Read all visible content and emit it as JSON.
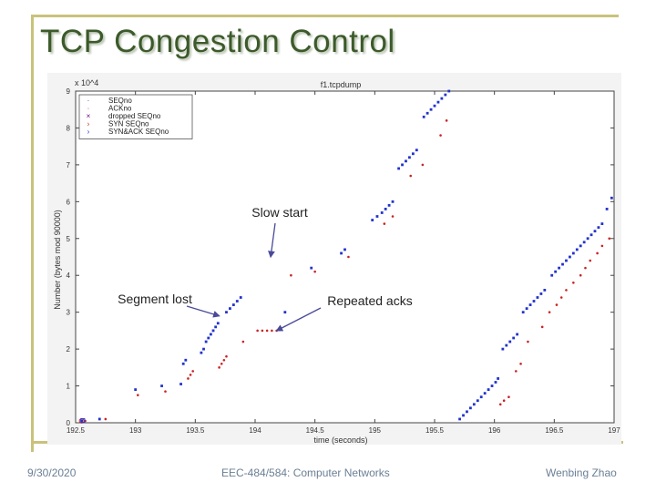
{
  "slide": {
    "title": "TCP Congestion Control",
    "footer_date": "9/30/2020",
    "footer_course": "EEC-484/584: Computer Networks",
    "footer_author": "Wenbing Zhao"
  },
  "chart_data": {
    "type": "scatter",
    "title": "f1.tcpdump",
    "xlabel": "time (seconds)",
    "ylabel": "Number (bytes mod 90000)",
    "y_multiplier": "x 10^4",
    "xlim": [
      192.5,
      197
    ],
    "ylim": [
      0,
      9
    ],
    "xticks": [
      "192.5",
      "193",
      "193.5",
      "194",
      "194.5",
      "195",
      "195.5",
      "196",
      "196.5",
      "197"
    ],
    "yticks": [
      "0",
      "1",
      "2",
      "3",
      "4",
      "5",
      "6",
      "7",
      "8",
      "9"
    ],
    "legend_position": "top-left",
    "legend": [
      "SEQno",
      "ACKno",
      "dropped SEQno",
      "SYN SEQno",
      "SYN&ACK SEQno"
    ],
    "series": [
      {
        "name": "SEQno",
        "color": "#2233cc",
        "x": [
          192.55,
          192.7,
          193.0,
          193.22,
          193.38,
          193.4,
          193.42,
          193.55,
          193.57,
          193.59,
          193.61,
          193.63,
          193.65,
          193.67,
          193.69,
          193.76,
          193.79,
          193.82,
          193.85,
          193.88,
          194.25,
          194.47,
          194.72,
          194.75,
          194.98,
          195.02,
          195.06,
          195.09,
          195.12,
          195.15,
          195.2,
          195.23,
          195.26,
          195.29,
          195.32,
          195.35,
          195.41,
          195.44,
          195.47,
          195.5,
          195.53,
          195.56,
          195.59,
          195.62,
          195.71,
          195.74,
          195.77,
          195.8,
          195.83,
          195.86,
          195.89,
          195.92,
          195.95,
          195.98,
          196.01,
          196.03,
          196.07,
          196.1,
          196.13,
          196.16,
          196.19,
          196.24,
          196.27,
          196.3,
          196.33,
          196.36,
          196.39,
          196.42,
          196.48,
          196.51,
          196.54,
          196.57,
          196.6,
          196.63,
          196.66,
          196.69,
          196.72,
          196.75,
          196.78,
          196.81,
          196.84,
          196.87,
          196.9,
          196.94,
          196.98
        ],
        "y": [
          0.05,
          0.1,
          0.9,
          1.0,
          1.05,
          1.6,
          1.7,
          1.9,
          2.0,
          2.2,
          2.3,
          2.4,
          2.5,
          2.6,
          2.7,
          3.0,
          3.1,
          3.2,
          3.3,
          3.4,
          3.0,
          4.2,
          4.6,
          4.7,
          5.5,
          5.6,
          5.7,
          5.8,
          5.9,
          6.0,
          6.9,
          7.0,
          7.1,
          7.2,
          7.3,
          7.4,
          8.3,
          8.4,
          8.5,
          8.6,
          8.7,
          8.8,
          8.9,
          9.0,
          0.1,
          0.2,
          0.3,
          0.4,
          0.5,
          0.6,
          0.7,
          0.8,
          0.9,
          1.0,
          1.1,
          1.2,
          2.0,
          2.1,
          2.2,
          2.3,
          2.4,
          3.0,
          3.1,
          3.2,
          3.3,
          3.4,
          3.5,
          3.6,
          4.0,
          4.1,
          4.2,
          4.3,
          4.4,
          4.5,
          4.6,
          4.7,
          4.8,
          4.9,
          5.0,
          5.1,
          5.2,
          5.3,
          5.4,
          5.8,
          6.1
        ]
      },
      {
        "name": "ACKno",
        "color": "#cc2222",
        "x": [
          192.58,
          192.75,
          193.02,
          193.25,
          193.44,
          193.46,
          193.48,
          193.7,
          193.72,
          193.74,
          193.76,
          193.9,
          194.02,
          194.06,
          194.1,
          194.14,
          194.18,
          194.3,
          194.5,
          194.78,
          195.08,
          195.15,
          195.3,
          195.4,
          195.55,
          195.6,
          196.05,
          196.08,
          196.12,
          196.18,
          196.22,
          196.28,
          196.4,
          196.46,
          196.52,
          196.56,
          196.6,
          196.66,
          196.72,
          196.76,
          196.8,
          196.86,
          196.9,
          196.96
        ],
        "y": [
          0.05,
          0.1,
          0.75,
          0.85,
          1.2,
          1.3,
          1.4,
          1.5,
          1.6,
          1.7,
          1.8,
          2.2,
          2.5,
          2.5,
          2.5,
          2.5,
          2.5,
          4.0,
          4.1,
          4.5,
          5.4,
          5.6,
          6.7,
          7.0,
          7.8,
          8.2,
          0.5,
          0.6,
          0.7,
          1.4,
          1.6,
          2.2,
          2.6,
          3.0,
          3.2,
          3.4,
          3.6,
          3.8,
          4.0,
          4.2,
          4.4,
          4.6,
          4.8,
          5.0
        ]
      },
      {
        "name": "dropped SEQno",
        "color": "#6a0a8a",
        "x": [],
        "y": []
      },
      {
        "name": "SYN SEQno",
        "color": "#cc2222",
        "x": [
          192.55
        ],
        "y": [
          0.05
        ]
      },
      {
        "name": "SYN&ACK SEQno",
        "color": "#2233cc",
        "x": [
          192.56
        ],
        "y": [
          0.06
        ]
      }
    ],
    "annotations": [
      {
        "text": "Slow start",
        "target_x": 194.13,
        "target_y": 4.5
      },
      {
        "text": "Segment lost",
        "target_x": 193.7,
        "target_y": 2.9
      },
      {
        "text": "Repeated acks",
        "target_x": 194.18,
        "target_y": 2.5
      }
    ]
  }
}
